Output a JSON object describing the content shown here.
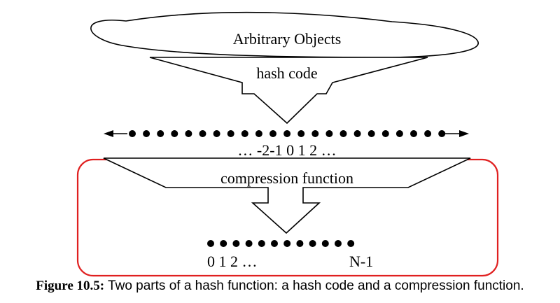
{
  "diagram": {
    "top_label": "Arbitrary Objects",
    "hash_label": "hash code",
    "integer_axis_label": "… -2-1 0 1 2 …",
    "compression_label": "compression function",
    "bucket_start_label": "0 1 2 …",
    "bucket_end_label": "N-1",
    "integer_dot_count": 23,
    "bucket_dot_count": 12,
    "highlight_color": "#e02020"
  },
  "caption": {
    "label": "Figure 10.5:",
    "text": " Two parts of a hash function: a hash code and a compression function."
  }
}
